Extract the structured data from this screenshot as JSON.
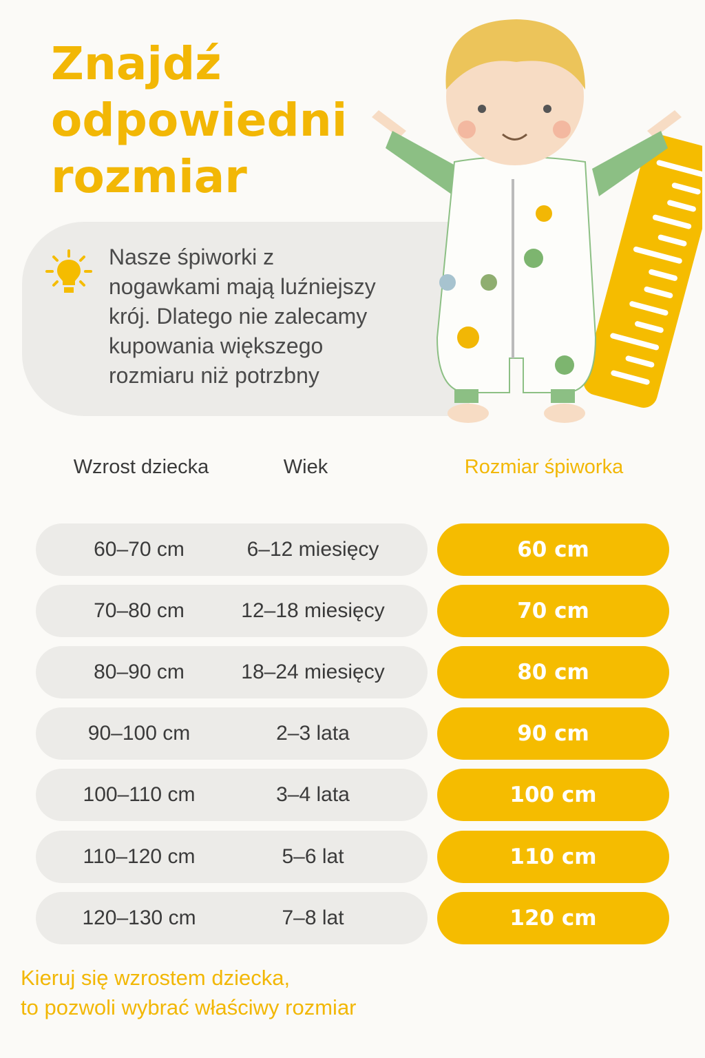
{
  "title": {
    "lines": [
      "Znajdź",
      "odpowiedni",
      "rozmiar"
    ]
  },
  "info": {
    "icon": "lightbulb-icon",
    "lines": [
      "Nasze śpiworki z",
      "nogawkami mają luźniejszy",
      "krój. Dlatego nie zalecamy",
      "kupowania większego",
      "rozmiaru niż potrzbny"
    ]
  },
  "table": {
    "headers": {
      "height": "Wzrost dziecka",
      "age": "Wiek",
      "size": "Rozmiar śpiworka"
    },
    "rows": [
      {
        "height": "60–70 cm",
        "age": "6–12 miesięcy",
        "size": "60 cm"
      },
      {
        "height": "70–80 cm",
        "age": "12–18 miesięcy",
        "size": "70 cm"
      },
      {
        "height": "80–90 cm",
        "age": "18–24 miesięcy",
        "size": "80 cm"
      },
      {
        "height": "90–100 cm",
        "age": "2–3 lata",
        "size": "90 cm"
      },
      {
        "height": "100–110 cm",
        "age": "3–4 lata",
        "size": "100 cm"
      },
      {
        "height": "110–120 cm",
        "age": "5–6 lat",
        "size": "110 cm"
      },
      {
        "height": "120–130 cm",
        "age": "7–8 lat",
        "size": "120 cm"
      }
    ]
  },
  "footer": {
    "lines": [
      "Kieruj się wzrostem dziecka,",
      "to pozwoli wybrać właściwy rozmiar"
    ]
  },
  "colors": {
    "accent": "#f5bc00",
    "title": "#f2b705",
    "pill": "#ecebe8",
    "text": "#3a3a3a",
    "sleeve": "#8cbf84"
  }
}
